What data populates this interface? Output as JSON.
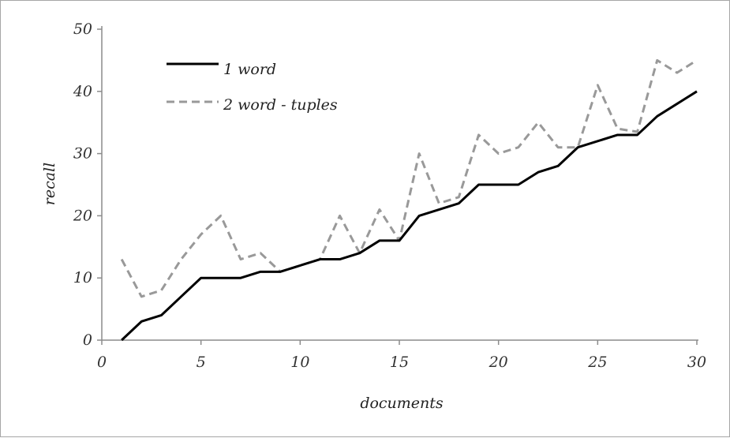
{
  "chart_data": {
    "type": "line",
    "title": "",
    "xlabel": "documents",
    "ylabel": "recall",
    "xlim": [
      0,
      30
    ],
    "ylim": [
      0,
      50
    ],
    "x_ticks": [
      "0",
      "5",
      "10",
      "15",
      "20",
      "25",
      "30"
    ],
    "y_ticks": [
      "0",
      "10",
      "20",
      "30",
      "40",
      "50"
    ],
    "grid": false,
    "legend_position": "top-left",
    "x": [
      1,
      2,
      3,
      4,
      5,
      6,
      7,
      8,
      9,
      10,
      11,
      12,
      13,
      14,
      15,
      16,
      17,
      18,
      19,
      20,
      21,
      22,
      23,
      24,
      25,
      26,
      27,
      28,
      29,
      30
    ],
    "series": [
      {
        "name": "1 word",
        "color": "#000000",
        "dash": "solid",
        "values": [
          0,
          3,
          4,
          7,
          10,
          10,
          10,
          11,
          11,
          12,
          13,
          13,
          14,
          16,
          16,
          20,
          21,
          22,
          25,
          25,
          25,
          27,
          28,
          31,
          32,
          33,
          33,
          36,
          38,
          40
        ]
      },
      {
        "name": "2 word - tuples",
        "color": "#999999",
        "dash": "dashed",
        "values": [
          13,
          7,
          8,
          13,
          17,
          20,
          13,
          14,
          11,
          12,
          13,
          20,
          14,
          21,
          16,
          30,
          22,
          23,
          33,
          30,
          31,
          35,
          31,
          31,
          41,
          34,
          33.5,
          45,
          43,
          45
        ]
      }
    ]
  }
}
